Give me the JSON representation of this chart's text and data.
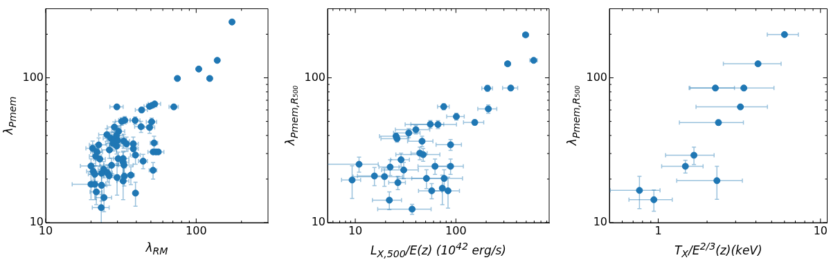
{
  "chart_data": [
    {
      "type": "scatter",
      "xlabel": "λ$_{RM}$",
      "ylabel": "λ$_{Pmem}$",
      "log": "xy",
      "marker": "circle",
      "color": "#1f77b4",
      "xlim": [
        10,
        300
      ],
      "ylim": [
        10,
        300
      ],
      "xticks": [
        {
          "value": 10,
          "label": "10"
        },
        {
          "value": 20,
          "label": null
        },
        {
          "value": 30,
          "label": null
        },
        {
          "value": 40,
          "label": null
        },
        {
          "value": 50,
          "label": null
        },
        {
          "value": 60,
          "label": null
        },
        {
          "value": 70,
          "label": null
        },
        {
          "value": 80,
          "label": null
        },
        {
          "value": 90,
          "label": null
        },
        {
          "value": 100,
          "label": "100"
        },
        {
          "value": 200,
          "label": null
        }
      ],
      "yticks": [
        {
          "value": 10,
          "label": "10"
        },
        {
          "value": 20,
          "label": null
        },
        {
          "value": 30,
          "label": null
        },
        {
          "value": 40,
          "label": null
        },
        {
          "value": 50,
          "label": null
        },
        {
          "value": 60,
          "label": null
        },
        {
          "value": 70,
          "label": null
        },
        {
          "value": 80,
          "label": null
        },
        {
          "value": 90,
          "label": null
        },
        {
          "value": 100,
          "label": "100"
        },
        {
          "value": 200,
          "label": null
        }
      ],
      "x": [
        173,
        138,
        104,
        123,
        75,
        71,
        29.7,
        43.4,
        49,
        50.8,
        53,
        33.5,
        32,
        39.3,
        50.6,
        43,
        49,
        28.6,
        30.5,
        29.6,
        25.5,
        27.1,
        28.8,
        30,
        33,
        34.4,
        38.2,
        28,
        29.6,
        52.5,
        38.2,
        26.5,
        22.5,
        20.5,
        21.9,
        21.5,
        39.5,
        51.8,
        54,
        56,
        22.9,
        30.3,
        32.7,
        44.4,
        32.7,
        27.4,
        20,
        33.1,
        51.7,
        20.7,
        24.3,
        21.2,
        23.5,
        25.7,
        26.4,
        36.8,
        33.3,
        29.8,
        32.7,
        20,
        21.2,
        23.5,
        21.7,
        39.5,
        24.4,
        23.4
      ],
      "values": [
        243,
        132,
        115,
        99,
        99,
        63,
        63,
        60,
        63.5,
        64.5,
        66,
        51,
        50,
        50.8,
        49.7,
        46,
        45.4,
        45.7,
        42.7,
        40,
        40.5,
        38.2,
        37.9,
        37,
        36.6,
        35,
        35,
        35.2,
        33.8,
        35.5,
        32.4,
        31.8,
        34.4,
        32.6,
        30.8,
        28.7,
        29.3,
        30.8,
        30.8,
        30.8,
        27.5,
        27.7,
        27.7,
        26.6,
        26.2,
        24.9,
        24.6,
        25,
        23,
        22.6,
        23.4,
        21.6,
        21.9,
        22.1,
        21.1,
        21.3,
        20.9,
        20.5,
        19.4,
        18.4,
        18.4,
        18.1,
        16.3,
        16,
        14.9,
        12.7
      ],
      "xerrors": [
        2,
        3,
        3,
        null,
        null,
        5,
        3,
        4,
        4,
        4,
        5,
        3,
        3,
        3,
        4,
        4,
        4,
        3,
        3,
        3,
        3,
        3,
        3,
        3,
        3,
        3,
        3,
        3,
        3,
        3,
        3,
        3,
        3,
        2,
        2,
        2,
        3,
        4,
        4,
        5,
        2,
        2,
        3,
        3,
        3,
        3,
        3,
        5,
        3,
        2,
        2,
        2,
        2,
        2,
        2,
        2,
        3,
        3,
        3,
        5,
        2,
        2,
        2,
        null,
        3,
        3
      ],
      "errors": [
        1,
        2,
        2,
        null,
        null,
        null,
        null,
        null,
        null,
        null,
        null,
        3,
        3,
        3,
        3,
        4,
        4,
        4,
        4,
        4,
        4,
        4,
        4,
        4,
        4,
        4,
        4,
        4,
        4,
        4,
        4,
        4,
        4,
        4,
        4,
        4,
        4,
        null,
        null,
        null,
        3,
        3,
        3,
        3,
        5,
        3,
        3,
        3,
        3,
        3,
        3,
        3,
        3,
        3,
        3,
        3,
        3,
        5,
        5,
        4,
        4,
        4,
        3,
        3,
        3,
        3
      ]
    },
    {
      "type": "scatter",
      "xlabel": "L$_{X,500}$/E(z) (10$^{42}$ erg/s)",
      "ylabel": "λ$_{Pmem,R₅₀₀}$",
      "log": "xy",
      "marker": "circle",
      "color": "#1f77b4",
      "xlim": [
        5.3,
        845
      ],
      "ylim": [
        10,
        300
      ],
      "xticks": [
        {
          "value": 6,
          "label": null
        },
        {
          "value": 7,
          "label": null
        },
        {
          "value": 8,
          "label": null
        },
        {
          "value": 9,
          "label": null
        },
        {
          "value": 10,
          "label": "10"
        },
        {
          "value": 20,
          "label": null
        },
        {
          "value": 30,
          "label": null
        },
        {
          "value": 40,
          "label": null
        },
        {
          "value": 50,
          "label": null
        },
        {
          "value": 60,
          "label": null
        },
        {
          "value": 70,
          "label": null
        },
        {
          "value": 80,
          "label": null
        },
        {
          "value": 90,
          "label": null
        },
        {
          "value": 100,
          "label": "100"
        },
        {
          "value": 200,
          "label": null
        },
        {
          "value": 300,
          "label": null
        },
        {
          "value": 400,
          "label": null
        },
        {
          "value": 500,
          "label": null
        },
        {
          "value": 600,
          "label": null
        },
        {
          "value": 700,
          "label": null
        },
        {
          "value": 800,
          "label": null
        }
      ],
      "yticks": [
        {
          "value": 10,
          "label": "10"
        },
        {
          "value": 20,
          "label": null
        },
        {
          "value": 30,
          "label": null
        },
        {
          "value": 40,
          "label": null
        },
        {
          "value": 50,
          "label": null
        },
        {
          "value": 60,
          "label": null
        },
        {
          "value": 70,
          "label": null
        },
        {
          "value": 80,
          "label": null
        },
        {
          "value": 90,
          "label": null
        },
        {
          "value": 100,
          "label": "100"
        },
        {
          "value": 200,
          "label": null
        }
      ],
      "x": [
        493,
        593,
        327,
        206,
        351,
        210,
        75.7,
        101,
        154,
        55.7,
        66.3,
        40,
        34,
        25.4,
        26,
        46.1,
        88.5,
        43.8,
        47.3,
        28.5,
        10.9,
        22.2,
        62,
        88.5,
        30.3,
        15.5,
        19.5,
        51,
        76.4,
        9.3,
        26.5,
        57.5,
        73.3,
        83.5,
        21.8,
        36.7
      ],
      "values": [
        198,
        132,
        125,
        84.7,
        85,
        61,
        63.2,
        54,
        49.2,
        47.8,
        47.6,
        43.9,
        41.6,
        39.5,
        38,
        36.5,
        34.5,
        30.2,
        29.5,
        27.2,
        25.3,
        24.2,
        24.5,
        24.5,
        23.1,
        21,
        20.8,
        20.2,
        20.2,
        19.7,
        18.9,
        16.6,
        17.3,
        16.6,
        14.3,
        12.4
      ],
      "xerrors": [
        30,
        50,
        20,
        25,
        60,
        45,
        10,
        20,
        35,
        20,
        35,
        15,
        10,
        8,
        8,
        13,
        25,
        8,
        22,
        6,
        6,
        5,
        20,
        30,
        12,
        5,
        10,
        25,
        40,
        2,
        5,
        15,
        null,
        25,
        7,
        20
      ],
      "errors": [
        3,
        null,
        3,
        4,
        3,
        4,
        3,
        3,
        2,
        3,
        3,
        3,
        3,
        2,
        2,
        3,
        3,
        3,
        3,
        3,
        3,
        3,
        3,
        3,
        3,
        3,
        3,
        3,
        3,
        5,
        2,
        2,
        4,
        4,
        2,
        1
      ]
    },
    {
      "type": "scatter",
      "xlabel": "T$_{X}$/E$^{2/3}$(z)(keV)",
      "ylabel": "λ$_{Pmem,R₅₀₀}$",
      "log": "xy",
      "marker": "circle",
      "color": "#1f77b4",
      "xlim": [
        0.5,
        11
      ],
      "ylim": [
        10,
        300
      ],
      "xticks": [
        {
          "value": 0.6,
          "label": null
        },
        {
          "value": 0.7,
          "label": null
        },
        {
          "value": 0.8,
          "label": null
        },
        {
          "value": 0.9,
          "label": null
        },
        {
          "value": 1,
          "label": "1"
        },
        {
          "value": 2,
          "label": null
        },
        {
          "value": 3,
          "label": null
        },
        {
          "value": 4,
          "label": null
        },
        {
          "value": 5,
          "label": null
        },
        {
          "value": 6,
          "label": null
        },
        {
          "value": 7,
          "label": null
        },
        {
          "value": 8,
          "label": null
        },
        {
          "value": 9,
          "label": null
        },
        {
          "value": 10,
          "label": "10"
        }
      ],
      "yticks": [
        {
          "value": 10,
          "label": "10"
        },
        {
          "value": 20,
          "label": null
        },
        {
          "value": 30,
          "label": null
        },
        {
          "value": 40,
          "label": null
        },
        {
          "value": 50,
          "label": null
        },
        {
          "value": 60,
          "label": null
        },
        {
          "value": 70,
          "label": null
        },
        {
          "value": 80,
          "label": null
        },
        {
          "value": 90,
          "label": null
        },
        {
          "value": 100,
          "label": "100"
        },
        {
          "value": 200,
          "label": null
        }
      ],
      "x": [
        6.0,
        4.12,
        2.25,
        3.37,
        3.21,
        2.35,
        1.66,
        1.47,
        2.3,
        0.766,
        0.94
      ],
      "values": [
        199,
        125,
        85,
        85,
        63,
        49.1,
        29.2,
        24.5,
        19.5,
        16.7,
        14.4
      ],
      "xerrors": [
        1.3,
        1.6,
        0.7,
        1.8,
        1.5,
        1.0,
        0.55,
        0.42,
        1.0,
        0.26,
        0.28
      ],
      "errors": [
        1,
        2,
        3,
        3,
        2,
        2,
        4,
        2.5,
        5,
        4.2,
        2.4
      ]
    }
  ]
}
